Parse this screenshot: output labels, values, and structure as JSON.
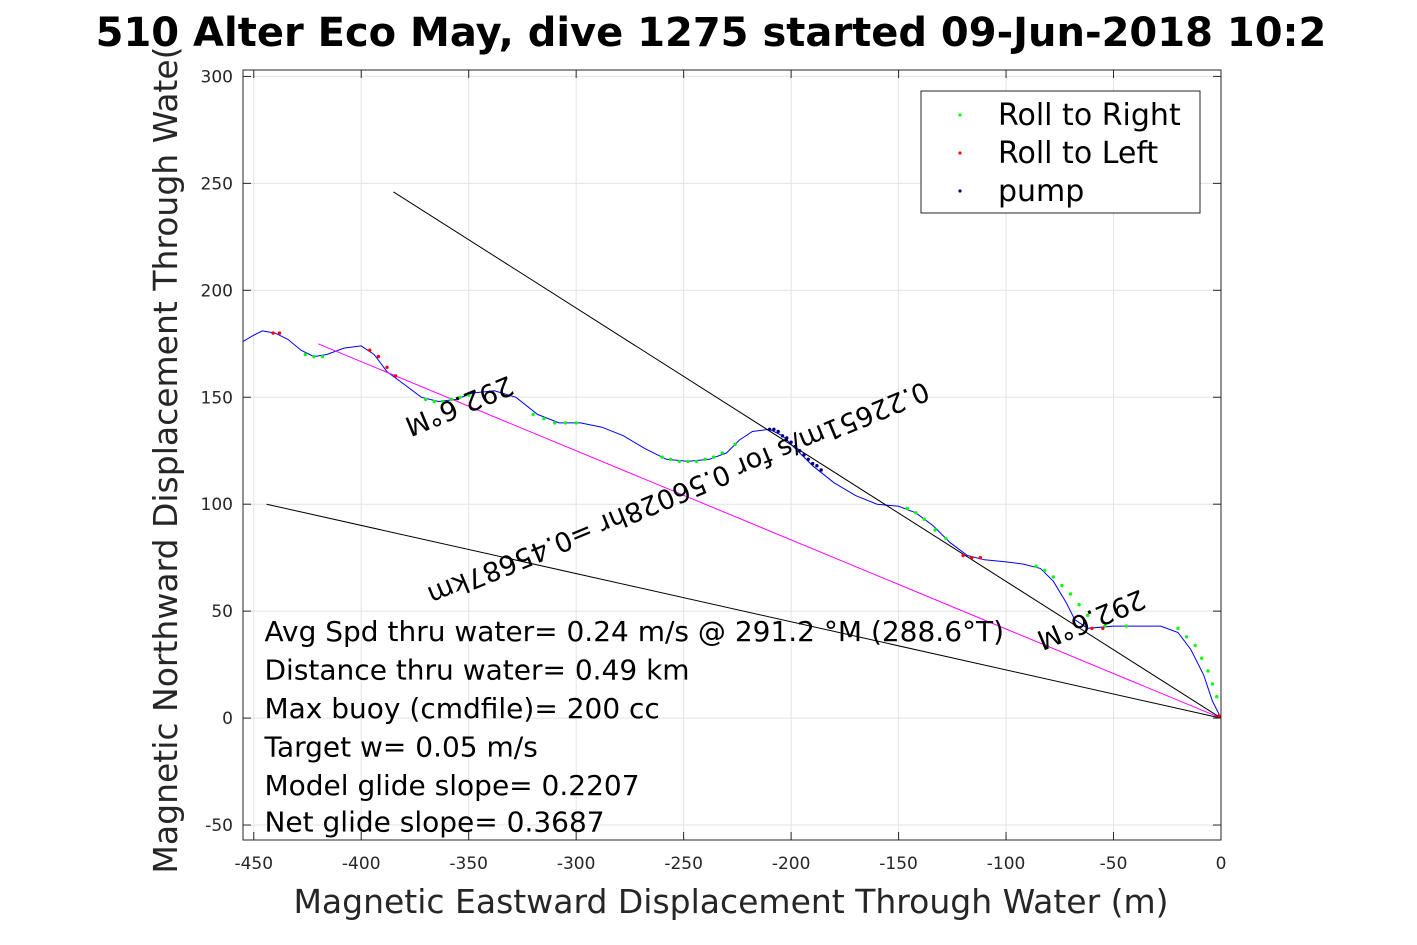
{
  "chart_data": {
    "type": "scatter",
    "title": "510 Alter Eco May, dive 1275 started 09-Jun-2018 10:2",
    "xlabel": "Magnetic Eastward Displacement Through Water (m)",
    "ylabel": "Magnetic Northward Displacement Through Wate(",
    "xlim": [
      -455,
      0
    ],
    "ylim": [
      -57,
      303
    ],
    "xticks": [
      -450,
      -400,
      -350,
      -300,
      -250,
      -200,
      -150,
      -100,
      -50,
      0
    ],
    "yticks": [
      -50,
      0,
      50,
      100,
      150,
      200,
      250,
      300
    ],
    "grid": true,
    "legend_position": "top-right",
    "legend": [
      "Roll to Right",
      "Roll to Left",
      "pump"
    ],
    "series": [
      {
        "type": "line",
        "color": "#0000ff",
        "points": [
          [
            0,
            0
          ],
          [
            -4,
            8
          ],
          [
            -8,
            20
          ],
          [
            -14,
            32
          ],
          [
            -20,
            40
          ],
          [
            -28,
            43
          ],
          [
            -38,
            43
          ],
          [
            -50,
            43
          ],
          [
            -62,
            42
          ],
          [
            -68,
            46
          ],
          [
            -72,
            54
          ],
          [
            -78,
            64
          ],
          [
            -84,
            70
          ],
          [
            -92,
            72
          ],
          [
            -100,
            73
          ],
          [
            -110,
            74
          ],
          [
            -118,
            76
          ],
          [
            -126,
            82
          ],
          [
            -134,
            90
          ],
          [
            -142,
            96
          ],
          [
            -150,
            99
          ],
          [
            -160,
            100
          ],
          [
            -170,
            104
          ],
          [
            -180,
            110
          ],
          [
            -190,
            118
          ],
          [
            -198,
            126
          ],
          [
            -204,
            132
          ],
          [
            -210,
            135
          ],
          [
            -218,
            134
          ],
          [
            -224,
            130
          ],
          [
            -230,
            124
          ],
          [
            -238,
            121
          ],
          [
            -248,
            120
          ],
          [
            -258,
            121
          ],
          [
            -268,
            126
          ],
          [
            -278,
            132
          ],
          [
            -288,
            136
          ],
          [
            -298,
            138
          ],
          [
            -308,
            138
          ],
          [
            -318,
            142
          ],
          [
            -328,
            150
          ],
          [
            -338,
            153
          ],
          [
            -348,
            152
          ],
          [
            -356,
            149
          ],
          [
            -364,
            148
          ],
          [
            -372,
            150
          ],
          [
            -380,
            156
          ],
          [
            -388,
            162
          ],
          [
            -394,
            170
          ],
          [
            -400,
            174
          ],
          [
            -408,
            173
          ],
          [
            -416,
            170
          ],
          [
            -422,
            169
          ],
          [
            -428,
            172
          ],
          [
            -434,
            177
          ],
          [
            -440,
            180
          ],
          [
            -446,
            181
          ],
          [
            -450,
            179
          ],
          [
            -455,
            176
          ]
        ]
      },
      {
        "type": "line",
        "color": "#ff00ff",
        "points": [
          [
            0,
            0
          ],
          [
            -420,
            175
          ]
        ]
      },
      {
        "type": "line",
        "color": "#000000",
        "points": [
          [
            0,
            0
          ],
          [
            -385,
            246
          ]
        ]
      },
      {
        "type": "line",
        "color": "#000000",
        "points": [
          [
            0,
            0
          ],
          [
            -444,
            100
          ]
        ]
      },
      {
        "name": "Roll to Right",
        "type": "scatter",
        "color": "#00ff00",
        "points": [
          [
            -2,
            10
          ],
          [
            -4,
            16
          ],
          [
            -6,
            22
          ],
          [
            -9,
            28
          ],
          [
            -12,
            34
          ],
          [
            -16,
            38
          ],
          [
            -20,
            42
          ],
          [
            -44,
            43
          ],
          [
            -54,
            43
          ],
          [
            -62,
            48
          ],
          [
            -66,
            53
          ],
          [
            -70,
            58
          ],
          [
            -74,
            62
          ],
          [
            -78,
            66
          ],
          [
            -82,
            69
          ],
          [
            -86,
            71
          ],
          [
            -128,
            84
          ],
          [
            -133,
            88
          ],
          [
            -138,
            93
          ],
          [
            -142,
            96
          ],
          [
            -146,
            98
          ],
          [
            -226,
            128
          ],
          [
            -232,
            124
          ],
          [
            -236,
            122
          ],
          [
            -240,
            121
          ],
          [
            -244,
            120
          ],
          [
            -248,
            120
          ],
          [
            -252,
            120
          ],
          [
            -256,
            121
          ],
          [
            -260,
            122
          ],
          [
            -300,
            138
          ],
          [
            -305,
            138
          ],
          [
            -310,
            138
          ],
          [
            -315,
            140
          ],
          [
            -320,
            142
          ],
          [
            -350,
            151
          ],
          [
            -354,
            150
          ],
          [
            -358,
            149
          ],
          [
            -362,
            148
          ],
          [
            -366,
            148
          ],
          [
            -370,
            149
          ],
          [
            -418,
            169
          ],
          [
            -422,
            169
          ],
          [
            -426,
            170
          ]
        ]
      },
      {
        "name": "Roll to Left",
        "type": "scatter",
        "color": "#ff0000",
        "points": [
          [
            -1,
            1
          ],
          [
            -55,
            42
          ],
          [
            -60,
            42
          ],
          [
            -112,
            75
          ],
          [
            -116,
            75
          ],
          [
            -120,
            76
          ],
          [
            -384,
            160
          ],
          [
            -388,
            164
          ],
          [
            -392,
            169
          ],
          [
            -396,
            172
          ],
          [
            -438,
            180
          ],
          [
            -441,
            180
          ]
        ]
      },
      {
        "name": "pump",
        "type": "scatter",
        "color": "#000080",
        "points": [
          [
            -186,
            116
          ],
          [
            -188,
            118
          ],
          [
            -190,
            119
          ],
          [
            -192,
            121
          ],
          [
            -194,
            123
          ],
          [
            -196,
            125
          ],
          [
            -198,
            127
          ],
          [
            -200,
            129
          ],
          [
            -202,
            131
          ],
          [
            -204,
            132
          ],
          [
            -206,
            134
          ],
          [
            -208,
            135
          ],
          [
            -210,
            135
          ]
        ]
      }
    ],
    "annotations": [
      {
        "text": "292.6°M",
        "x": -356,
        "y": 150,
        "angle": -202.6
      },
      {
        "text": "292.6°M",
        "x": -62,
        "y": 50,
        "angle": -202.6
      },
      {
        "text": "0.22651m/s for 0.56028hr =0.45687km",
        "x": -254,
        "y": 109,
        "angle": -202.6
      },
      {
        "text": "Avg Spd thru water=  0.24 m/s @ 291.2 °M (288.6°T)",
        "x": -445,
        "y": 36
      },
      {
        "text": "Distance thru water=  0.49 km",
        "x": -445,
        "y": 18
      },
      {
        "text": "Max buoy (cmdfile)= 200 cc",
        "x": -445,
        "y": 0
      },
      {
        "text": "Target w= 0.05 m/s",
        "x": -445,
        "y": -18
      },
      {
        "text": "Model glide slope= 0.2207",
        "x": -445,
        "y": -36
      },
      {
        "text": "Net glide slope= 0.3687",
        "x": -445,
        "y": -53
      }
    ]
  }
}
